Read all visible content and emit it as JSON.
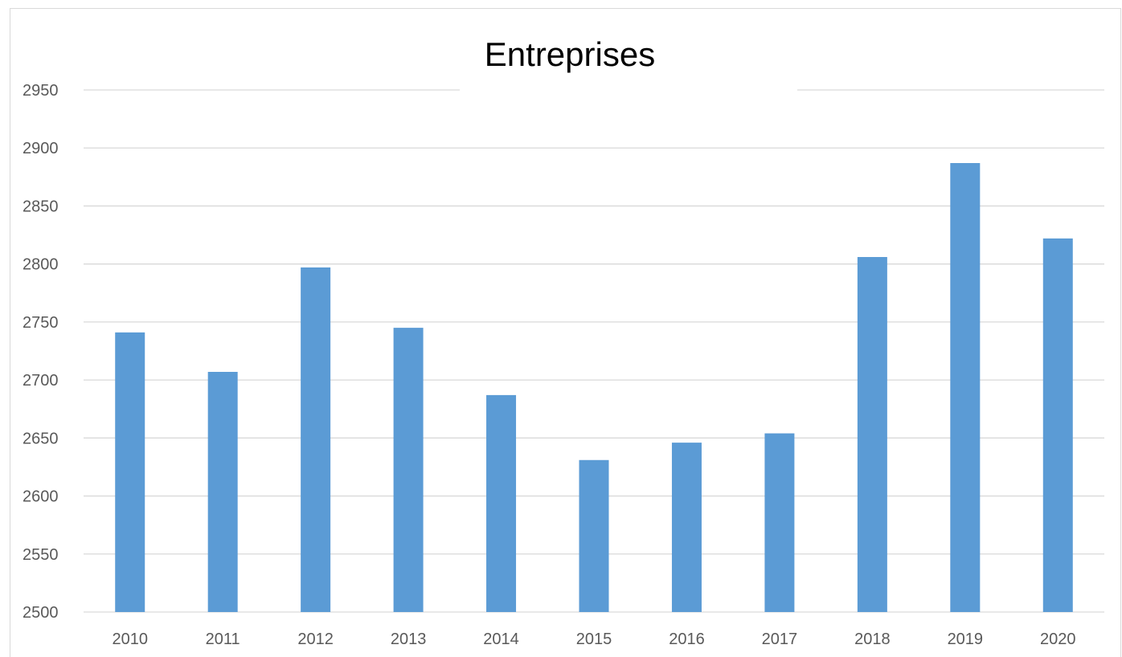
{
  "chart_data": {
    "type": "bar",
    "title": "Entreprises",
    "xlabel": "",
    "ylabel": "",
    "categories": [
      "2010",
      "2011",
      "2012",
      "2013",
      "2014",
      "2015",
      "2016",
      "2017",
      "2018",
      "2019",
      "2020"
    ],
    "values": [
      2741,
      2707,
      2797,
      2745,
      2687,
      2631,
      2646,
      2654,
      2806,
      2887,
      2822
    ],
    "ylim": [
      2500,
      2950
    ],
    "yticks": [
      "2500",
      "2550",
      "2600",
      "2650",
      "2700",
      "2750",
      "2800",
      "2850",
      "2900",
      "2950"
    ],
    "grid": true,
    "legend": "none",
    "colors": {
      "bar": "#5b9bd5",
      "grid": "#d9d9d9",
      "tick_text": "#595959",
      "title_text": "#000000"
    }
  }
}
